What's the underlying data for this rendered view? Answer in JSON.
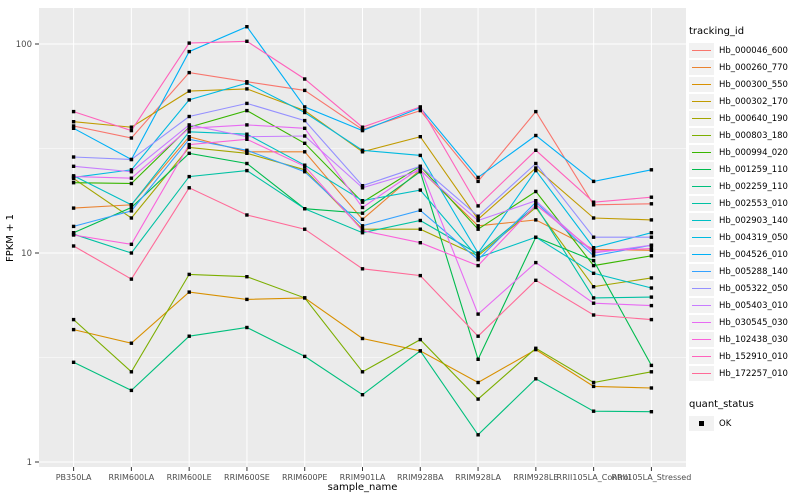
{
  "figure": {
    "x_axis_title": "sample_name",
    "y_axis_title": "FPKM + 1",
    "colors": {
      "panel_background": "#EBEBEB",
      "gridline": "#FFFFFF",
      "tick_text": "#4D4D4D",
      "axis_text": "#000000",
      "marker": "#000000",
      "legend_key_background": "#F2F2F2"
    }
  },
  "legend": {
    "tracking_title": "tracking_id",
    "quant_title": "quant_status",
    "quant_items": [
      {
        "label": "OK",
        "marker": "filled-black-square"
      }
    ]
  },
  "chart_data": {
    "type": "line",
    "title": "",
    "xlabel": "sample_name",
    "ylabel": "FPKM + 1",
    "y_scale": "log10",
    "y_ticks": [
      1,
      10,
      100
    ],
    "y_tick_labels": [
      "1",
      "10",
      "100"
    ],
    "y_minor_ticks": [
      3.162,
      31.62
    ],
    "ylim": [
      1,
      150
    ],
    "grid": true,
    "legend_position": "right",
    "point_marker": "black-square",
    "categories": [
      "PB350LA",
      "RRIM600LA",
      "RRIM600LE",
      "RRIM600SE",
      "RRIM600PE",
      "RRIM901LA",
      "RRIM928BA",
      "RRIM928LA",
      "RRIM928LE",
      "RRII105LA_Control",
      "RRII105LA_Stressed"
    ],
    "series": [
      {
        "name": "Hb_000046_600",
        "color": "#F8766D",
        "values": [
          40.5,
          35.5,
          73,
          66,
          60,
          39,
          48,
          22,
          47.5,
          17,
          17.2
        ]
      },
      {
        "name": "Hb_000260_770",
        "color": "#EA8331",
        "values": [
          16.4,
          17,
          36,
          30.5,
          30.5,
          14.5,
          25,
          13.5,
          14.4,
          10.4,
          10.3
        ]
      },
      {
        "name": "Hb_000300_550",
        "color": "#D89000",
        "values": [
          4.3,
          3.7,
          6.5,
          6.0,
          6.1,
          3.9,
          3.4,
          2.4,
          3.45,
          2.3,
          2.26
        ]
      },
      {
        "name": "Hb_000302_170",
        "color": "#C09B00",
        "values": [
          42.5,
          40,
          59.5,
          61,
          48,
          30.5,
          36,
          14.5,
          25.5,
          14.7,
          14.4
        ]
      },
      {
        "name": "Hb_000640_190",
        "color": "#A3A500",
        "values": [
          22.7,
          14.7,
          32,
          30,
          25,
          13,
          13,
          9.7,
          16.5,
          6.9,
          7.6
        ]
      },
      {
        "name": "Hb_000803_180",
        "color": "#7CAE00",
        "values": [
          4.8,
          2.7,
          7.9,
          7.7,
          6.1,
          2.7,
          3.85,
          2.0,
          3.5,
          2.4,
          2.7
        ]
      },
      {
        "name": "Hb_000994_020",
        "color": "#39B600",
        "values": [
          21.7,
          21.5,
          40,
          48,
          33.5,
          17.5,
          26,
          13,
          19.7,
          8.7,
          9.7
        ]
      },
      {
        "name": "Hb_001259_110",
        "color": "#00BB4E",
        "values": [
          12.5,
          16.5,
          30,
          26.8,
          16.3,
          15.5,
          24.5,
          3.1,
          11.9,
          9.2,
          2.9
        ]
      },
      {
        "name": "Hb_002259_110",
        "color": "#00BF7D",
        "values": [
          3.0,
          2.2,
          4.0,
          4.4,
          3.2,
          2.1,
          3.4,
          1.35,
          2.5,
          1.75,
          1.74
        ]
      },
      {
        "name": "Hb_002553_010",
        "color": "#00C1A3",
        "values": [
          12.3,
          10,
          23.2,
          24.8,
          16.3,
          12.5,
          14.3,
          9.9,
          16.8,
          6.1,
          6.15
        ]
      },
      {
        "name": "Hb_002903_140",
        "color": "#00BFC4",
        "values": [
          23.4,
          17,
          38,
          37,
          26.3,
          17.8,
          20,
          9.5,
          11.9,
          8.0,
          6.8
        ]
      },
      {
        "name": "Hb_004319_050",
        "color": "#00BAE0",
        "values": [
          23,
          25,
          54,
          65,
          47,
          31,
          29.3,
          10,
          24.8,
          10.6,
          12.5
        ]
      },
      {
        "name": "Hb_004526_010",
        "color": "#00B0F6",
        "values": [
          39.5,
          28,
          92,
          121,
          50,
          38.5,
          49.5,
          23,
          36.5,
          22,
          25
        ]
      },
      {
        "name": "Hb_005288_140",
        "color": "#35A2FF",
        "values": [
          13.4,
          15.9,
          35,
          31,
          24.5,
          13.5,
          16,
          9.3,
          17.5,
          9.7,
          10.9
        ]
      },
      {
        "name": "Hb_005322_050",
        "color": "#9590FF",
        "values": [
          28.8,
          28,
          45,
          52,
          43,
          21,
          26,
          15,
          26.8,
          11.9,
          11.9
        ]
      },
      {
        "name": "Hb_005403_010",
        "color": "#C77CFF",
        "values": [
          26,
          24.5,
          41,
          36,
          36.3,
          20.5,
          24.8,
          14.3,
          17.8,
          10,
          10.9
        ]
      },
      {
        "name": "Hb_030545_030",
        "color": "#E76BF3",
        "values": [
          23.2,
          22.8,
          39.5,
          41,
          39.5,
          16.5,
          25.5,
          5.1,
          9.0,
          5.75,
          5.6
        ]
      },
      {
        "name": "Hb_102438_030",
        "color": "#FA62DB",
        "values": [
          12.2,
          11.0,
          33,
          35,
          26,
          12.8,
          11.2,
          8.7,
          17,
          10.2,
          10.5
        ]
      },
      {
        "name": "Hb_152910_010",
        "color": "#FF62BC",
        "values": [
          47.5,
          38.5,
          101,
          103,
          68,
          40,
          50,
          16.8,
          31,
          17.5,
          18.5
        ]
      },
      {
        "name": "Hb_172257_010",
        "color": "#FF6A98",
        "values": [
          10.8,
          7.5,
          20.5,
          15.2,
          13,
          8.4,
          7.8,
          4.0,
          7.4,
          5.05,
          4.8
        ]
      }
    ]
  }
}
